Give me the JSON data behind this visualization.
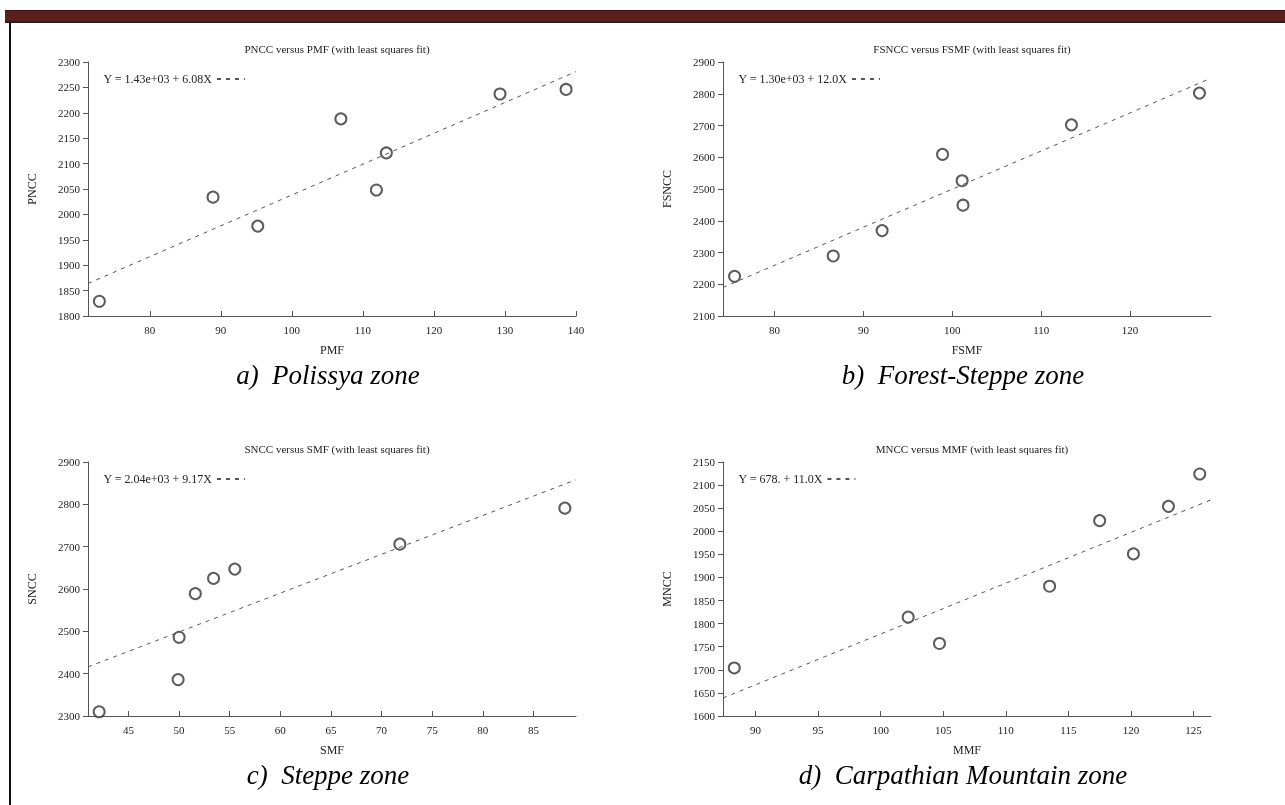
{
  "chart_data": [
    {
      "type": "scatter",
      "title": "PNCC versus PMF (with least squares fit)",
      "xlabel": "PMF",
      "ylabel": "PNCC",
      "xlim": [
        71.3,
        140
      ],
      "ylim": [
        1800,
        2300
      ],
      "xticks": [
        80,
        90,
        100,
        110,
        120,
        130,
        140
      ],
      "yticks": [
        1800,
        1850,
        1900,
        1950,
        2000,
        2050,
        2100,
        2150,
        2200,
        2250,
        2300
      ],
      "grid": false,
      "legend": "top left",
      "annotations": [
        "a)  Polissya zone"
      ],
      "series": [
        {
          "type": "scatter",
          "color": "#333333",
          "marker": "circle",
          "x": [
            72.9,
            88.9,
            95.2,
            106.9,
            111.9,
            113.3,
            129.3,
            138.6
          ],
          "values": [
            1829,
            2034,
            1977,
            2188,
            2048,
            2121,
            2237,
            2246
          ]
        },
        {
          "type": "line",
          "name": "Y = 1.43e+03 + 6.08X",
          "color": "#555555",
          "marker": "none",
          "line_style": "dashed",
          "x": [
            71.3,
            140
          ],
          "values": [
            1864,
            2281
          ]
        }
      ]
    },
    {
      "type": "scatter",
      "title": "FSNCC versus FSMF (with least squares fit)",
      "xlabel": "FSMF",
      "ylabel": "FSNCC",
      "xlim": [
        74.2,
        129.1
      ],
      "ylim": [
        2100,
        2900
      ],
      "xticks": [
        80,
        90,
        100,
        110,
        120
      ],
      "yticks": [
        2100,
        2200,
        2300,
        2400,
        2500,
        2600,
        2700,
        2800,
        2900
      ],
      "grid": false,
      "legend": "top left",
      "annotations": [
        "b)  Forest-Steppe zone"
      ],
      "series": [
        {
          "type": "scatter",
          "color": "#333333",
          "marker": "circle",
          "x": [
            75.5,
            86.6,
            92.1,
            98.9,
            101.1,
            101.2,
            113.4,
            127.8
          ],
          "values": [
            2225,
            2289,
            2369,
            2609,
            2526,
            2449,
            2702,
            2802
          ]
        },
        {
          "type": "line",
          "name": "Y = 1.30e+03 + 12.0X",
          "color": "#555555",
          "marker": "none",
          "line_style": "dashed",
          "x": [
            74.2,
            129.1
          ],
          "values": [
            2190,
            2849
          ]
        }
      ]
    },
    {
      "type": "scatter",
      "title": "SNCC versus SMF (with least squares fit)",
      "xlabel": "SMF",
      "ylabel": "SNCC",
      "xlim": [
        41.0,
        89.2
      ],
      "ylim": [
        2300,
        2900
      ],
      "xticks": [
        45,
        50,
        55,
        60,
        65,
        70,
        75,
        80,
        85
      ],
      "yticks": [
        2300,
        2400,
        2500,
        2600,
        2700,
        2800,
        2900
      ],
      "grid": false,
      "legend": "top left",
      "annotations": [
        "c)  Steppe zone"
      ],
      "series": [
        {
          "type": "scatter",
          "color": "#333333",
          "marker": "circle",
          "x": [
            42.1,
            49.9,
            50.0,
            51.6,
            53.4,
            55.5,
            71.8,
            88.1
          ],
          "values": [
            2310,
            2386,
            2486,
            2589,
            2625,
            2647,
            2706,
            2791
          ]
        },
        {
          "type": "line",
          "name": "Y = 2.04e+03 + 9.17X",
          "color": "#555555",
          "marker": "none",
          "line_style": "dashed",
          "x": [
            41.0,
            89.2
          ],
          "values": [
            2416,
            2858
          ]
        }
      ]
    },
    {
      "type": "scatter",
      "title": "MNCC versus MMF (with least squares fit)",
      "xlabel": "MMF",
      "ylabel": "MNCC",
      "xlim": [
        87.4,
        126.4
      ],
      "ylim": [
        1600,
        2150
      ],
      "xticks": [
        90,
        95,
        100,
        105,
        110,
        115,
        120,
        125
      ],
      "yticks": [
        1600,
        1650,
        1700,
        1750,
        1800,
        1850,
        1900,
        1950,
        2000,
        2050,
        2100,
        2150
      ],
      "grid": false,
      "legend": "top left",
      "annotations": [
        "d)  Carpathian Mountain zone"
      ],
      "series": [
        {
          "type": "scatter",
          "color": "#333333",
          "marker": "circle",
          "x": [
            88.3,
            102.2,
            104.7,
            113.5,
            117.5,
            120.2,
            123.0,
            125.5
          ],
          "values": [
            1704,
            1814,
            1757,
            1881,
            2023,
            1951,
            2054,
            2124
          ]
        },
        {
          "type": "line",
          "name": "Y = 678. + 11.0X",
          "color": "#555555",
          "marker": "none",
          "line_style": "dashed",
          "x": [
            87.4,
            126.4
          ],
          "values": [
            1639,
            2068
          ]
        }
      ]
    }
  ]
}
